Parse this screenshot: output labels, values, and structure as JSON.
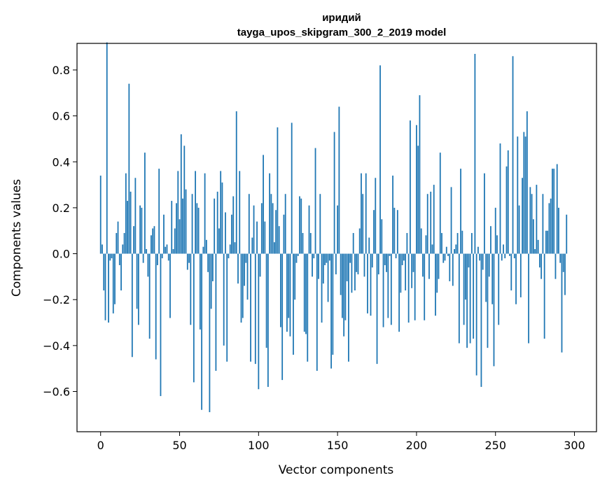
{
  "chart_data": {
    "type": "bar",
    "title": "иридий",
    "subtitle": "tayga_upos_skipgram_300_2_2019 model",
    "xlabel": "Vector components",
    "ylabel": "Components values",
    "xlim": [
      -14.95,
      313.95
    ],
    "ylim": [
      -0.7752,
      0.9157
    ],
    "xticks": [
      0,
      50,
      100,
      150,
      200,
      250,
      300
    ],
    "yticks": [
      -0.6,
      -0.4,
      -0.2,
      0.0,
      0.2,
      0.4,
      0.6,
      0.8
    ],
    "ytick_labels": [
      "−0.6",
      "−0.4",
      "−0.2",
      "0.0",
      "0.2",
      "0.4",
      "0.6",
      "0.8"
    ],
    "bar_color": "#1f77b4",
    "grid": false,
    "values": [
      0.34,
      0.04,
      -0.16,
      -0.29,
      0.92,
      -0.3,
      -0.03,
      -0.02,
      -0.26,
      -0.22,
      0.09,
      0.14,
      -0.05,
      -0.16,
      0.04,
      0.09,
      0.35,
      0.23,
      0.74,
      0.27,
      -0.45,
      0.12,
      0.33,
      -0.24,
      -0.31,
      0.21,
      0.2,
      -0.04,
      0.44,
      0.02,
      -0.1,
      -0.37,
      0.08,
      0.11,
      0.12,
      -0.46,
      -0.05,
      0.37,
      -0.62,
      -0.02,
      0.17,
      0.03,
      0.04,
      -0.03,
      -0.28,
      0.23,
      0.02,
      0.11,
      0.22,
      0.36,
      0.15,
      0.52,
      0.24,
      0.47,
      0.28,
      -0.07,
      -0.04,
      -0.31,
      0.26,
      -0.56,
      0.36,
      0.22,
      0.2,
      -0.33,
      -0.68,
      0.03,
      0.35,
      0.06,
      -0.08,
      -0.69,
      -0.24,
      -0.12,
      0.24,
      -0.51,
      0.27,
      0.11,
      0.36,
      0.31,
      -0.4,
      0.18,
      -0.47,
      -0.02,
      0.04,
      0.17,
      0.25,
      0.05,
      0.62,
      -0.13,
      0.36,
      -0.3,
      -0.28,
      -0.14,
      -0.04,
      -0.2,
      0.26,
      -0.47,
      0.07,
      0.21,
      -0.48,
      0.14,
      -0.59,
      -0.1,
      0.22,
      0.43,
      0.14,
      -0.41,
      -0.58,
      0.35,
      0.26,
      0.22,
      0.05,
      0.19,
      0.55,
      0.12,
      -0.32,
      -0.55,
      0.17,
      0.26,
      -0.34,
      -0.28,
      -0.36,
      0.57,
      -0.44,
      -0.2,
      -0.04,
      -0.01,
      0.25,
      0.24,
      0.09,
      -0.34,
      -0.35,
      -0.47,
      0.21,
      0.09,
      -0.1,
      -0.02,
      0.46,
      -0.51,
      -0.11,
      0.26,
      -0.3,
      -0.13,
      -0.05,
      -0.04,
      -0.21,
      -0.03,
      -0.5,
      -0.44,
      0.53,
      -0.09,
      0.21,
      0.64,
      -0.18,
      -0.28,
      -0.36,
      -0.29,
      -0.12,
      -0.47,
      -0.04,
      -0.17,
      0.09,
      -0.16,
      -0.08,
      -0.09,
      0.11,
      0.35,
      0.26,
      -0.1,
      0.35,
      -0.26,
      0.07,
      -0.27,
      -0.06,
      0.19,
      0.33,
      -0.48,
      -0.09,
      0.82,
      0.15,
      -0.32,
      -0.05,
      -0.08,
      -0.28,
      -0.01,
      -0.31,
      0.34,
      0.2,
      -0.02,
      0.19,
      -0.34,
      -0.17,
      -0.05,
      -0.03,
      -0.16,
      0.09,
      -0.3,
      0.58,
      -0.15,
      -0.08,
      -0.29,
      0.56,
      0.47,
      0.69,
      0.11,
      -0.1,
      -0.29,
      0.08,
      0.26,
      -0.11,
      0.27,
      0.04,
      0.3,
      -0.27,
      -0.17,
      -0.11,
      0.44,
      0.09,
      -0.04,
      -0.03,
      0.03,
      -0.01,
      -0.12,
      0.29,
      -0.14,
      0.02,
      0.04,
      0.09,
      -0.39,
      0.37,
      0.1,
      -0.31,
      -0.2,
      -0.41,
      -0.06,
      -0.39,
      0.09,
      -0.37,
      0.87,
      -0.53,
      0.03,
      -0.03,
      -0.58,
      -0.07,
      0.35,
      -0.21,
      -0.41,
      -0.1,
      0.12,
      -0.22,
      -0.49,
      0.2,
      0.08,
      -0.31,
      0.48,
      -0.03,
      0.04,
      -0.02,
      0.38,
      0.45,
      -0.01,
      -0.16,
      0.86,
      -0.02,
      -0.22,
      0.51,
      0.21,
      -0.19,
      0.33,
      0.53,
      0.51,
      0.62,
      -0.39,
      0.29,
      0.26,
      0.15,
      0.02,
      0.3,
      0.06,
      -0.06,
      -0.11,
      0.26,
      -0.37,
      0.1,
      0.1,
      0.22,
      0.24,
      0.37,
      0.37,
      -0.11,
      0.39,
      0.2,
      -0.04,
      -0.43,
      -0.08,
      -0.18,
      0.17
    ]
  }
}
